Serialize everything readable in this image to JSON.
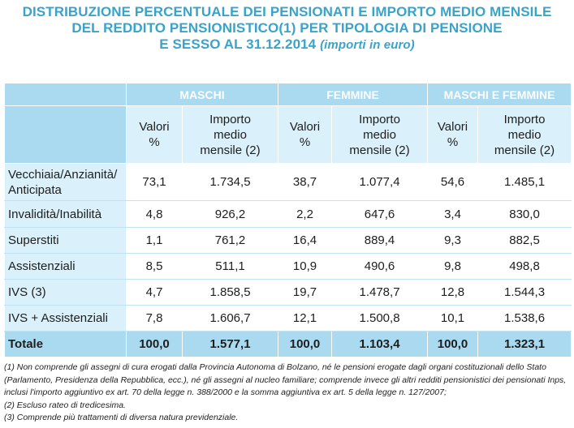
{
  "title": {
    "line1": "DISTRIBUZIONE PERCENTUALE DEI PENSIONATI E IMPORTO MEDIO MENSILE",
    "line2": "DEL REDDITO PENSIONISTICO(1) PER TIPOLOGIA DI PENSIONE",
    "line3": "E SESSO AL 31.12.2014",
    "unit": "(importi in euro)"
  },
  "groups": [
    "MASCHI",
    "FEMMINE",
    "MASCHI E FEMMINE"
  ],
  "subheaders": {
    "valori_line1": "Valori",
    "valori_line2": "%",
    "importo_line1": "Importo",
    "importo_line2": "medio",
    "importo_line3": "mensile (2)"
  },
  "rows": [
    {
      "label_line1": "Vecchiaia/Anzianità/",
      "label_line2": "Anticipata",
      "values": [
        "73,1",
        "1.734,5",
        "38,7",
        "1.077,4",
        "54,6",
        "1.485,1"
      ]
    },
    {
      "label_line1": "Invalidità/Inabilità",
      "label_line2": "",
      "values": [
        "4,8",
        "926,2",
        "2,2",
        "647,6",
        "3,4",
        "830,0"
      ]
    },
    {
      "label_line1": "Superstiti",
      "label_line2": "",
      "values": [
        "1,1",
        "761,2",
        "16,4",
        "889,4",
        "9,3",
        "882,5"
      ]
    },
    {
      "label_line1": "Assistenziali",
      "label_line2": "",
      "values": [
        "8,5",
        "511,1",
        "10,9",
        "490,6",
        "9,8",
        "498,8"
      ]
    },
    {
      "label_line1": "IVS (3)",
      "label_line2": "",
      "values": [
        "4,7",
        "1.858,5",
        "19,7",
        "1.478,7",
        "12,8",
        "1.544,3"
      ]
    },
    {
      "label_line1": "IVS + Assistenziali",
      "label_line2": "",
      "values": [
        "7,8",
        "1.606,7",
        "12,1",
        "1.500,8",
        "10,1",
        "1.538,6"
      ]
    }
  ],
  "total": {
    "label": "Totale",
    "values": [
      "100,0",
      "1.577,1",
      "100,0",
      "1.103,4",
      "100,0",
      "1.323,1"
    ]
  },
  "notes": [
    "(1) Non comprende gli assegni di cura erogati dalla Provincia Autonoma di Bolzano, né le pensioni erogate dagli organi costituzionali dello Stato (Parlamento, Presidenza della Repubblica, ecc.), né gli assegni al nucleo familiare; comprende invece gli altri redditi pensionistici dei pensionati Inps, inclusi l'importo aggiuntivo ex art. 70 della legge n. 388/2000 e la somma aggiuntiva ex art. 5 della legge n. 127/2007;",
    "(2) Escluso rateo di tredicesima.",
    "(3) Comprende più trattamenti di diversa natura previdenziale."
  ]
}
